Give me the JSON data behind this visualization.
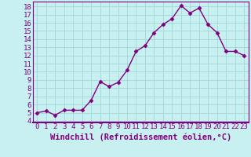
{
  "x": [
    0,
    1,
    2,
    3,
    4,
    5,
    6,
    7,
    8,
    9,
    10,
    11,
    12,
    13,
    14,
    15,
    16,
    17,
    18,
    19,
    20,
    21,
    22,
    23
  ],
  "y": [
    5.0,
    5.2,
    4.7,
    5.3,
    5.3,
    5.3,
    6.5,
    8.8,
    8.2,
    8.7,
    10.2,
    12.5,
    13.2,
    14.8,
    15.8,
    16.5,
    18.1,
    17.2,
    17.8,
    15.8,
    14.8,
    12.5,
    12.5,
    12.0
  ],
  "line_color": "#800080",
  "marker": "D",
  "marker_size": 2.5,
  "bg_color": "#c8f0f0",
  "grid_color": "#a0d8d8",
  "xlabel": "Windchill (Refroidissement éolien,°C)",
  "xlim": [
    -0.5,
    23.5
  ],
  "ylim": [
    3.8,
    18.6
  ],
  "yticks": [
    4,
    5,
    6,
    7,
    8,
    9,
    10,
    11,
    12,
    13,
    14,
    15,
    16,
    17,
    18
  ],
  "xticks": [
    0,
    1,
    2,
    3,
    4,
    5,
    6,
    7,
    8,
    9,
    10,
    11,
    12,
    13,
    14,
    15,
    16,
    17,
    18,
    19,
    20,
    21,
    22,
    23
  ],
  "label_color": "#800080",
  "tick_color": "#800080",
  "font_size": 6.5,
  "xlabel_font_size": 7.5,
  "spine_color": "#800080",
  "linewidth": 1.0
}
